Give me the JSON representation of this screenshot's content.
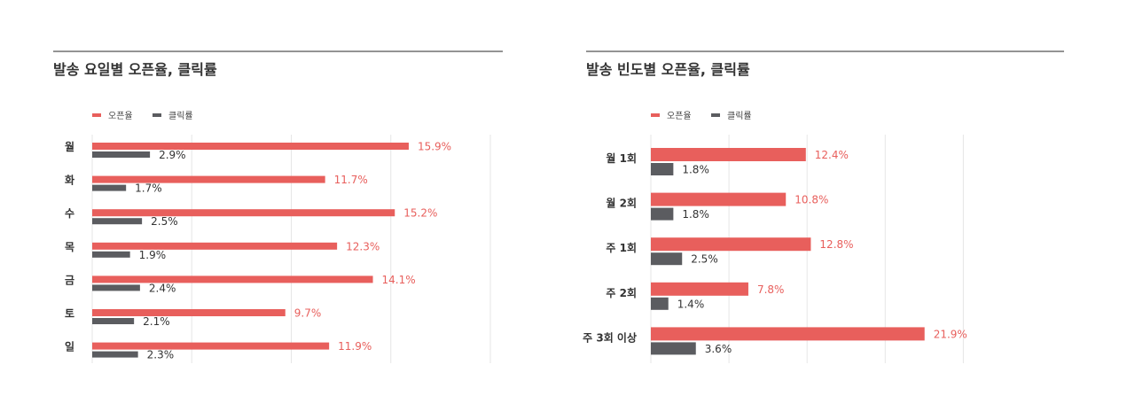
{
  "chart_data": [
    {
      "type": "bar",
      "orientation": "horizontal",
      "title": "발송 요일별 오픈율, 클릭률",
      "categories": [
        "월",
        "화",
        "수",
        "목",
        "금",
        "토",
        "일"
      ],
      "series": [
        {
          "name": "오픈율",
          "values": [
            15.9,
            11.7,
            15.2,
            12.3,
            14.1,
            9.7,
            11.9
          ],
          "labels": [
            "15.9%",
            "11.7%",
            "15.2%",
            "12.3%",
            "14.1%",
            "9.7%",
            "11.9%"
          ]
        },
        {
          "name": "클릭률",
          "values": [
            2.9,
            1.7,
            2.5,
            1.9,
            2.4,
            2.1,
            2.3
          ],
          "labels": [
            "2.9%",
            "1.7%",
            "2.5%",
            "1.9%",
            "2.4%",
            "2.1%",
            "2.3%"
          ]
        }
      ],
      "xlim": [
        0,
        20
      ],
      "grid": true,
      "legend": "top-left",
      "colors": [
        "#e85f5c",
        "#5b5c60"
      ]
    },
    {
      "type": "bar",
      "orientation": "horizontal",
      "title": "발송 빈도별 오픈율, 클릭률",
      "categories": [
        "월 1회",
        "월 2회",
        "주 1회",
        "주 2회",
        "주 3회 이상"
      ],
      "series": [
        {
          "name": "오픈율",
          "values": [
            12.4,
            10.8,
            12.8,
            7.8,
            21.9
          ],
          "labels": [
            "12.4%",
            "10.8%",
            "12.8%",
            "7.8%",
            "21.9%"
          ]
        },
        {
          "name": "클릭률",
          "values": [
            1.8,
            1.8,
            2.5,
            1.4,
            3.6
          ],
          "labels": [
            "1.8%",
            "1.8%",
            "2.5%",
            "1.4%",
            "3.6%"
          ]
        }
      ],
      "xlim": [
        0,
        25
      ],
      "grid": true,
      "legend": "top-left",
      "colors": [
        "#e85f5c",
        "#5b5c60"
      ]
    }
  ]
}
